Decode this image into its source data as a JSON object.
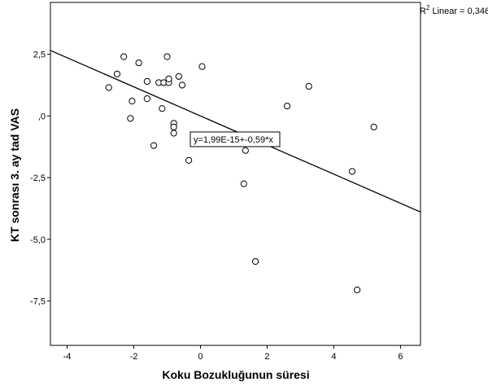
{
  "chart_data": {
    "type": "scatter",
    "xlabel": "Koku Bozukluğunun süresi",
    "ylabel": "KT sonrası 3. ay tad VAS",
    "xlim": [
      -4.5,
      6.6
    ],
    "ylim": [
      -9.3,
      4.6
    ],
    "x_ticks": [
      -4,
      -2,
      0,
      2,
      4,
      6
    ],
    "y_ticks": [
      2.5,
      0,
      -2.5,
      -5,
      -7.5
    ],
    "tick_labels_x": [
      "-4",
      "-2",
      "0",
      "2",
      "4",
      "6"
    ],
    "tick_labels_y": [
      "2,5",
      ",0",
      "-2,5",
      "-5,0",
      "-7,5"
    ],
    "grid": false,
    "fit_line": {
      "intercept": 0.0,
      "slope": -0.59,
      "equation_label": "y=1,99E-15+-0,59*x"
    },
    "r2_label": {
      "prefix": "R",
      "superscript": "2",
      "text": " Linear = 0,346"
    },
    "points": [
      {
        "x": -2.3,
        "y": 2.4
      },
      {
        "x": -1.85,
        "y": 2.15
      },
      {
        "x": -1.0,
        "y": 2.4
      },
      {
        "x": -2.5,
        "y": 1.7
      },
      {
        "x": -2.75,
        "y": 1.15
      },
      {
        "x": -1.6,
        "y": 1.4
      },
      {
        "x": -1.25,
        "y": 1.35
      },
      {
        "x": -1.1,
        "y": 1.35
      },
      {
        "x": -0.95,
        "y": 1.35
      },
      {
        "x": -0.95,
        "y": 1.5
      },
      {
        "x": -0.65,
        "y": 1.6
      },
      {
        "x": -0.55,
        "y": 1.25
      },
      {
        "x": 0.05,
        "y": 2.0
      },
      {
        "x": -1.6,
        "y": 0.7
      },
      {
        "x": -2.05,
        "y": 0.6
      },
      {
        "x": -1.15,
        "y": 0.3
      },
      {
        "x": -2.1,
        "y": -0.1
      },
      {
        "x": -0.8,
        "y": -0.3
      },
      {
        "x": -0.8,
        "y": -0.45
      },
      {
        "x": -0.8,
        "y": -0.7
      },
      {
        "x": -1.4,
        "y": -1.2
      },
      {
        "x": -0.35,
        "y": -1.8
      },
      {
        "x": 3.25,
        "y": 1.2
      },
      {
        "x": 2.6,
        "y": 0.4
      },
      {
        "x": 5.2,
        "y": -0.45
      },
      {
        "x": 1.35,
        "y": -1.4
      },
      {
        "x": 4.55,
        "y": -2.25
      },
      {
        "x": 1.3,
        "y": -2.75
      },
      {
        "x": 1.65,
        "y": -5.9
      },
      {
        "x": 4.7,
        "y": -7.05
      }
    ]
  }
}
